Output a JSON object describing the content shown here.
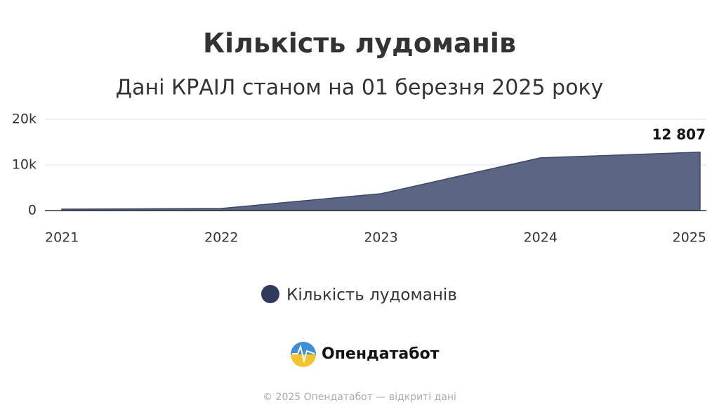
{
  "chart_data": {
    "type": "area",
    "title": "Кількість лудоманів",
    "subtitle": "Дані КРАІЛ станом на 01 березня 2025 року",
    "categories": [
      "2021",
      "2022",
      "2023",
      "2024",
      "2025"
    ],
    "series": [
      {
        "name": "Кількість лудоманів",
        "color": "#5b6584",
        "legend_color": "#2f3a5c",
        "values": [
          300,
          460,
          3700,
          11550,
          12807
        ],
        "value_labels": [
          null,
          null,
          null,
          null,
          "12 807"
        ]
      }
    ],
    "ylim": [
      0,
      20000
    ],
    "yticks": [
      0,
      {
        "value": 10000,
        "label": "10k"
      },
      {
        "value": 20000,
        "label": "20k"
      }
    ],
    "grid": true
  },
  "brand": "Опендатабот",
  "footer": "© 2025 Опендатабот — відкриті дані"
}
